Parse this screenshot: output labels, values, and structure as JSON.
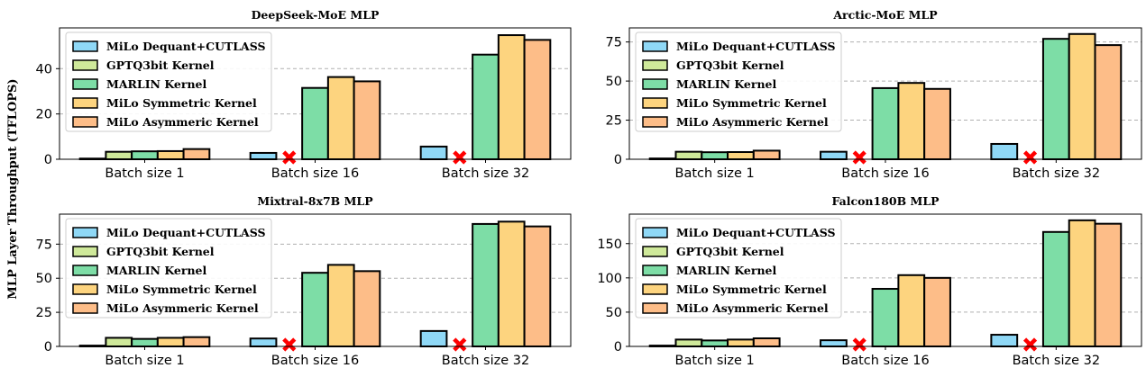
{
  "figure": {
    "ylabel": "MLP Layer Throughput (TFLOPS)"
  },
  "colors": {
    "MiLo Dequant+CUTLASS": "#8fd8f6",
    "GPTQ3bit Kernel": "#cfe99a",
    "MARLIN Kernel": "#7ddda6",
    "MiLo Symmetric Kernel": "#fdd47f",
    "MiLo Asymmeric Kernel": "#fdbd88",
    "unsupported_marker": "#ff0000",
    "grid": "#b0b0b0"
  },
  "chart_data": [
    {
      "type": "bar",
      "title": "DeepSeek-MoE MLP",
      "categories": [
        "Batch size 1",
        "Batch size 16",
        "Batch size 32"
      ],
      "ylim": [
        0,
        58
      ],
      "yticks": [
        0,
        20,
        40
      ],
      "grid": true,
      "legend": "top-left",
      "series": [
        {
          "name": "MiLo Dequant+CUTLASS",
          "values": [
            0.3,
            2.8,
            5.6
          ]
        },
        {
          "name": "GPTQ3bit Kernel",
          "values": [
            3.3,
            null,
            null
          ]
        },
        {
          "name": "MARLIN Kernel",
          "values": [
            3.5,
            31.5,
            46.2
          ]
        },
        {
          "name": "MiLo Symmetric Kernel",
          "values": [
            3.6,
            36.3,
            54.8
          ]
        },
        {
          "name": "MiLo Asymmeric Kernel",
          "values": [
            4.5,
            34.4,
            52.7
          ]
        }
      ],
      "unsupported_marks": [
        {
          "series": "GPTQ3bit Kernel",
          "category": "Batch size 16"
        },
        {
          "series": "GPTQ3bit Kernel",
          "category": "Batch size 32"
        }
      ]
    },
    {
      "type": "bar",
      "title": "Arctic-MoE MLP",
      "categories": [
        "Batch size 1",
        "Batch size 16",
        "Batch size 32"
      ],
      "ylim": [
        0,
        84
      ],
      "yticks": [
        0,
        25,
        50,
        75
      ],
      "grid": true,
      "legend": "top-left",
      "series": [
        {
          "name": "MiLo Dequant+CUTLASS",
          "values": [
            0.5,
            4.8,
            9.8
          ]
        },
        {
          "name": "GPTQ3bit Kernel",
          "values": [
            4.8,
            null,
            null
          ]
        },
        {
          "name": "MARLIN Kernel",
          "values": [
            4.5,
            45.5,
            77.0
          ]
        },
        {
          "name": "MiLo Symmetric Kernel",
          "values": [
            4.6,
            48.8,
            80.1
          ]
        },
        {
          "name": "MiLo Asymmeric Kernel",
          "values": [
            5.5,
            45.0,
            73.0
          ]
        }
      ],
      "unsupported_marks": [
        {
          "series": "GPTQ3bit Kernel",
          "category": "Batch size 16"
        },
        {
          "series": "GPTQ3bit Kernel",
          "category": "Batch size 32"
        }
      ]
    },
    {
      "type": "bar",
      "title": "Mixtral-8x7B MLP",
      "categories": [
        "Batch size 1",
        "Batch size 16",
        "Batch size 32"
      ],
      "ylim": [
        0,
        97
      ],
      "yticks": [
        0,
        25,
        50,
        75
      ],
      "grid": true,
      "legend": "top-left",
      "series": [
        {
          "name": "MiLo Dequant+CUTLASS",
          "values": [
            0.6,
            5.8,
            11.3
          ]
        },
        {
          "name": "GPTQ3bit Kernel",
          "values": [
            6.3,
            null,
            null
          ]
        },
        {
          "name": "MARLIN Kernel",
          "values": [
            5.5,
            54.0,
            89.8
          ]
        },
        {
          "name": "MiLo Symmetric Kernel",
          "values": [
            6.3,
            59.8,
            91.5
          ]
        },
        {
          "name": "MiLo Asymmeric Kernel",
          "values": [
            6.8,
            55.2,
            88.0
          ]
        }
      ],
      "unsupported_marks": [
        {
          "series": "GPTQ3bit Kernel",
          "category": "Batch size 16"
        },
        {
          "series": "GPTQ3bit Kernel",
          "category": "Batch size 32"
        }
      ]
    },
    {
      "type": "bar",
      "title": "Falcon180B MLP",
      "categories": [
        "Batch size 1",
        "Batch size 16",
        "Batch size 32"
      ],
      "ylim": [
        0,
        193
      ],
      "yticks": [
        0,
        50,
        100,
        150
      ],
      "grid": true,
      "legend": "top-left",
      "series": [
        {
          "name": "MiLo Dequant+CUTLASS",
          "values": [
            1.2,
            9.0,
            17.0
          ]
        },
        {
          "name": "GPTQ3bit Kernel",
          "values": [
            10.0,
            null,
            null
          ]
        },
        {
          "name": "MARLIN Kernel",
          "values": [
            8.7,
            84.0,
            167.0
          ]
        },
        {
          "name": "MiLo Symmetric Kernel",
          "values": [
            10.0,
            104.0,
            184.0
          ]
        },
        {
          "name": "MiLo Asymmeric Kernel",
          "values": [
            11.8,
            100.0,
            179.0
          ]
        }
      ],
      "unsupported_marks": [
        {
          "series": "GPTQ3bit Kernel",
          "category": "Batch size 16"
        },
        {
          "series": "GPTQ3bit Kernel",
          "category": "Batch size 32"
        }
      ]
    }
  ]
}
